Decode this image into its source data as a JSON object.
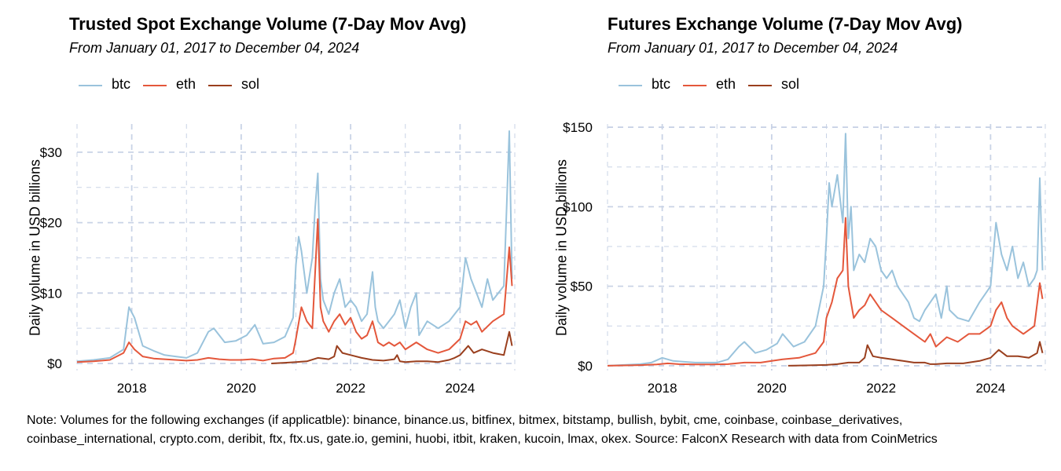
{
  "colors": {
    "btc": "#9ac3dc",
    "eth": "#e4573b",
    "sol": "#9a3f1e",
    "grid": "#c9d3e6"
  },
  "note": "Note: Volumes for the following exchanges (if applicatble): binance, binance.us, bitfinex, bitmex, bitstamp, bullish, bybit, cme, coinbase, coinbase_derivatives, coinbase_international, crypto.com, deribit, ftx, ftx.us, gate.io, gemini, huobi, itbit, kraken, kucoin, lmax, okex. Source: FalconX Research with data from CoinMetrics",
  "chart_data": [
    {
      "type": "line",
      "title": "Trusted Spot Exchange Volume (7-Day Mov Avg)",
      "subtitle": "From January 01, 2017 to December 04, 2024",
      "xlabel": "",
      "ylabel": "Daily volume in USD billions",
      "xlim": [
        2017.0,
        2025.0
      ],
      "ylim": [
        -1,
        34
      ],
      "x_ticks": [
        2018,
        2020,
        2022,
        2024
      ],
      "x_tick_labels": [
        "2018",
        "2020",
        "2022",
        "2024"
      ],
      "y_ticks": [
        0,
        10,
        20,
        30
      ],
      "y_tick_labels": [
        "$0",
        "$10",
        "$20",
        "$30"
      ],
      "legend": [
        "btc",
        "eth",
        "sol"
      ],
      "series": [
        {
          "name": "btc",
          "x": [
            2017.0,
            2017.3,
            2017.6,
            2017.85,
            2017.95,
            2018.05,
            2018.2,
            2018.4,
            2018.6,
            2018.8,
            2019.0,
            2019.2,
            2019.4,
            2019.5,
            2019.7,
            2019.9,
            2020.1,
            2020.25,
            2020.4,
            2020.6,
            2020.8,
            2020.95,
            2021.0,
            2021.05,
            2021.1,
            2021.2,
            2021.3,
            2021.35,
            2021.4,
            2021.45,
            2021.5,
            2021.6,
            2021.7,
            2021.8,
            2021.9,
            2022.0,
            2022.1,
            2022.2,
            2022.3,
            2022.4,
            2022.45,
            2022.5,
            2022.6,
            2022.7,
            2022.8,
            2022.85,
            2022.9,
            2023.0,
            2023.1,
            2023.2,
            2023.25,
            2023.4,
            2023.6,
            2023.8,
            2023.9,
            2024.0,
            2024.1,
            2024.2,
            2024.3,
            2024.4,
            2024.5,
            2024.6,
            2024.7,
            2024.8,
            2024.85,
            2024.9,
            2024.95
          ],
          "y": [
            0.3,
            0.5,
            0.8,
            2.0,
            8.0,
            6.5,
            2.5,
            1.8,
            1.2,
            1.0,
            0.8,
            1.5,
            4.5,
            5.0,
            3.0,
            3.2,
            4.0,
            5.5,
            2.8,
            3.0,
            3.8,
            6.5,
            14,
            18,
            16,
            10,
            15,
            22,
            27,
            12,
            9,
            7,
            10,
            12,
            8,
            9,
            8,
            6,
            7,
            13,
            8,
            6,
            5,
            6,
            7,
            8,
            9,
            5,
            8,
            10,
            4,
            6,
            5,
            6,
            7,
            8,
            15,
            12,
            10,
            8,
            12,
            9,
            10,
            11,
            22,
            33,
            12
          ]
        },
        {
          "name": "eth",
          "x": [
            2017.0,
            2017.3,
            2017.6,
            2017.85,
            2017.95,
            2018.05,
            2018.2,
            2018.4,
            2018.6,
            2018.8,
            2019.0,
            2019.2,
            2019.4,
            2019.6,
            2019.8,
            2020.0,
            2020.2,
            2020.4,
            2020.6,
            2020.8,
            2020.95,
            2021.0,
            2021.1,
            2021.2,
            2021.3,
            2021.4,
            2021.45,
            2021.5,
            2021.6,
            2021.7,
            2021.8,
            2021.9,
            2022.0,
            2022.1,
            2022.2,
            2022.3,
            2022.4,
            2022.5,
            2022.6,
            2022.7,
            2022.8,
            2022.9,
            2023.0,
            2023.2,
            2023.4,
            2023.6,
            2023.8,
            2024.0,
            2024.1,
            2024.2,
            2024.3,
            2024.4,
            2024.6,
            2024.8,
            2024.9,
            2024.95
          ],
          "y": [
            0.2,
            0.3,
            0.5,
            1.5,
            3.0,
            2.0,
            1.0,
            0.7,
            0.6,
            0.5,
            0.4,
            0.5,
            0.8,
            0.6,
            0.5,
            0.5,
            0.6,
            0.4,
            0.7,
            0.8,
            1.5,
            3.5,
            8.0,
            6.0,
            5.0,
            20.5,
            8.0,
            6.0,
            4.5,
            6.0,
            7.0,
            5.5,
            6.5,
            4.5,
            3.5,
            4.0,
            6.0,
            3.0,
            2.5,
            3.0,
            2.5,
            3.0,
            2.0,
            3.0,
            2.0,
            1.5,
            2.0,
            3.5,
            6.0,
            5.5,
            6.0,
            4.5,
            6.0,
            7.0,
            16.5,
            11.0
          ]
        },
        {
          "name": "sol",
          "x": [
            2020.55,
            2020.8,
            2021.0,
            2021.2,
            2021.4,
            2021.6,
            2021.7,
            2021.75,
            2021.85,
            2022.0,
            2022.2,
            2022.4,
            2022.6,
            2022.8,
            2022.85,
            2022.9,
            2023.0,
            2023.2,
            2023.4,
            2023.6,
            2023.8,
            2023.9,
            2024.0,
            2024.15,
            2024.25,
            2024.4,
            2024.6,
            2024.8,
            2024.9,
            2024.95
          ],
          "y": [
            0,
            0.1,
            0.2,
            0.3,
            0.8,
            0.6,
            1.0,
            2.5,
            1.5,
            1.2,
            0.8,
            0.5,
            0.4,
            0.6,
            1.2,
            0.3,
            0.2,
            0.3,
            0.3,
            0.2,
            0.5,
            0.8,
            1.2,
            2.5,
            1.5,
            2.0,
            1.5,
            1.2,
            4.5,
            2.5
          ]
        }
      ]
    },
    {
      "type": "line",
      "title": "Futures Exchange Volume (7-Day Mov Avg)",
      "subtitle": "From January 01, 2017 to December 04, 2024",
      "xlabel": "",
      "ylabel": "Daily volume in USD billions",
      "xlim": [
        2017.0,
        2025.0
      ],
      "ylim": [
        -3,
        152
      ],
      "x_ticks": [
        2018,
        2020,
        2022,
        2024
      ],
      "x_tick_labels": [
        "2018",
        "2020",
        "2022",
        "2024"
      ],
      "y_ticks": [
        0,
        50,
        100,
        150
      ],
      "y_tick_labels": [
        "$0",
        "$50",
        "$100",
        "$150"
      ],
      "legend": [
        "btc",
        "eth",
        "sol"
      ],
      "series": [
        {
          "name": "btc",
          "x": [
            2017.0,
            2017.3,
            2017.6,
            2017.8,
            2018.0,
            2018.2,
            2018.4,
            2018.6,
            2018.8,
            2019.0,
            2019.2,
            2019.4,
            2019.5,
            2019.7,
            2019.9,
            2020.1,
            2020.2,
            2020.4,
            2020.6,
            2020.8,
            2020.95,
            2021.0,
            2021.05,
            2021.1,
            2021.2,
            2021.3,
            2021.35,
            2021.4,
            2021.45,
            2021.5,
            2021.6,
            2021.7,
            2021.8,
            2021.9,
            2022.0,
            2022.1,
            2022.2,
            2022.3,
            2022.4,
            2022.5,
            2022.6,
            2022.7,
            2022.8,
            2022.9,
            2023.0,
            2023.1,
            2023.2,
            2023.25,
            2023.4,
            2023.6,
            2023.8,
            2023.9,
            2024.0,
            2024.1,
            2024.2,
            2024.3,
            2024.4,
            2024.5,
            2024.6,
            2024.7,
            2024.8,
            2024.85,
            2024.9,
            2024.95
          ],
          "y": [
            0,
            0.5,
            1,
            2,
            5,
            3,
            2.5,
            2,
            2,
            2,
            4,
            12,
            15,
            8,
            10,
            14,
            20,
            12,
            15,
            25,
            50,
            80,
            115,
            100,
            120,
            90,
            146,
            80,
            100,
            60,
            70,
            65,
            80,
            75,
            60,
            55,
            60,
            50,
            45,
            40,
            30,
            28,
            35,
            40,
            45,
            30,
            50,
            35,
            30,
            28,
            40,
            45,
            50,
            90,
            70,
            60,
            75,
            55,
            65,
            50,
            55,
            60,
            118,
            60
          ]
        },
        {
          "name": "eth",
          "x": [
            2017.0,
            2017.3,
            2017.6,
            2017.9,
            2018.1,
            2018.3,
            2018.6,
            2018.9,
            2019.2,
            2019.5,
            2019.8,
            2020.0,
            2020.2,
            2020.5,
            2020.8,
            2020.95,
            2021.0,
            2021.1,
            2021.2,
            2021.3,
            2021.35,
            2021.4,
            2021.45,
            2021.5,
            2021.6,
            2021.7,
            2021.8,
            2021.9,
            2022.0,
            2022.2,
            2022.4,
            2022.6,
            2022.8,
            2022.9,
            2023.0,
            2023.2,
            2023.4,
            2023.6,
            2023.8,
            2024.0,
            2024.1,
            2024.2,
            2024.3,
            2024.4,
            2024.6,
            2024.8,
            2024.9,
            2024.95
          ],
          "y": [
            0,
            0.2,
            0.4,
            0.8,
            1.5,
            1,
            0.8,
            0.8,
            1,
            2,
            2,
            3,
            4,
            5,
            8,
            15,
            30,
            40,
            55,
            60,
            93,
            50,
            40,
            30,
            35,
            38,
            45,
            40,
            35,
            30,
            25,
            20,
            15,
            20,
            12,
            18,
            15,
            20,
            20,
            25,
            35,
            40,
            30,
            25,
            20,
            25,
            52,
            42
          ]
        },
        {
          "name": "sol",
          "x": [
            2020.3,
            2020.6,
            2021.0,
            2021.2,
            2021.4,
            2021.6,
            2021.7,
            2021.75,
            2021.85,
            2022.0,
            2022.2,
            2022.4,
            2022.6,
            2022.8,
            2022.9,
            2023.0,
            2023.2,
            2023.5,
            2023.8,
            2024.0,
            2024.15,
            2024.3,
            2024.5,
            2024.7,
            2024.85,
            2024.9,
            2024.95
          ],
          "y": [
            0,
            0.2,
            0.5,
            1,
            2,
            2,
            5,
            13,
            6,
            5,
            4,
            3,
            2,
            2,
            1,
            1,
            1.5,
            1.5,
            3,
            5,
            10,
            6,
            6,
            5,
            8,
            15,
            8
          ]
        }
      ]
    }
  ]
}
